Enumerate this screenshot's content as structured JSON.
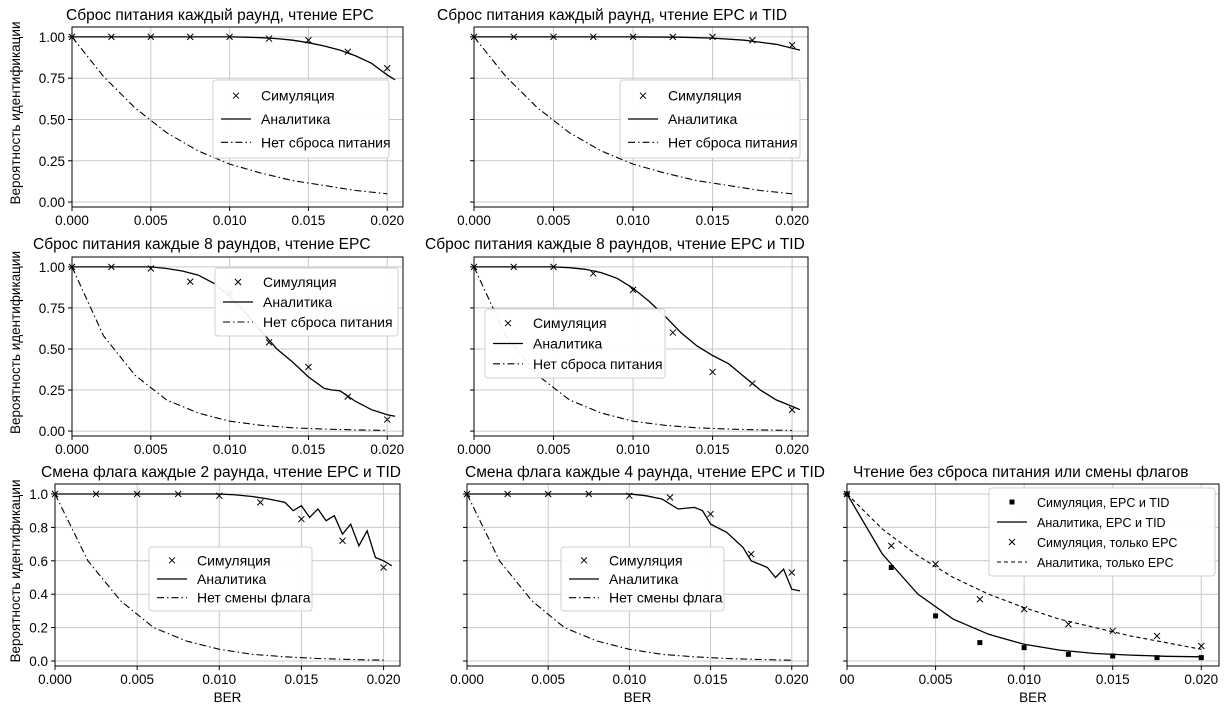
{
  "chart_data": [
    {
      "type": "line",
      "title": "Сброс питания каждый раунд, чтение EPC",
      "ylabel": "Вероятность идентификации",
      "xlabel": "",
      "xlim": [
        0,
        0.021
      ],
      "ylim": [
        -0.03,
        1.06
      ],
      "xticks": [
        "0.000",
        "0.005",
        "0.010",
        "0.015",
        "0.020"
      ],
      "yticks": [
        "0.00",
        "0.25",
        "0.50",
        "0.75",
        "1.00"
      ],
      "grid": true,
      "legend_position": "center-right",
      "series": [
        {
          "name": "Симуляция",
          "style": "marker-x",
          "x": [
            0,
            0.0025,
            0.005,
            0.0075,
            0.01,
            0.0125,
            0.015,
            0.0175,
            0.02
          ],
          "y": [
            1.0,
            1.0,
            1.0,
            1.0,
            1.0,
            0.99,
            0.98,
            0.91,
            0.81
          ]
        },
        {
          "name": "Аналитика",
          "style": "solid",
          "x": [
            0,
            0.005,
            0.01,
            0.011,
            0.012,
            0.013,
            0.014,
            0.015,
            0.016,
            0.017,
            0.018,
            0.019,
            0.02,
            0.0205
          ],
          "y": [
            1.0,
            1.0,
            1.0,
            0.998,
            0.995,
            0.99,
            0.98,
            0.965,
            0.945,
            0.92,
            0.885,
            0.84,
            0.77,
            0.74
          ]
        },
        {
          "name": "Нет сброса питания",
          "style": "dashdot",
          "x": [
            0,
            0.002,
            0.004,
            0.006,
            0.008,
            0.01,
            0.012,
            0.014,
            0.016,
            0.018,
            0.02
          ],
          "y": [
            1.0,
            0.76,
            0.57,
            0.42,
            0.31,
            0.23,
            0.175,
            0.13,
            0.1,
            0.07,
            0.05
          ]
        }
      ]
    },
    {
      "type": "line",
      "title": "Сброс питания каждый раунд, чтение EPC и TID",
      "ylabel": "",
      "xlabel": "",
      "xlim": [
        0,
        0.021
      ],
      "ylim": [
        -0.03,
        1.06
      ],
      "xticks": [
        "0.000",
        "0.005",
        "0.010",
        "0.015",
        "0.020"
      ],
      "yticks": [],
      "grid": true,
      "legend_position": "center-right",
      "series": [
        {
          "name": "Симуляция",
          "style": "marker-x",
          "x": [
            0,
            0.0025,
            0.005,
            0.0075,
            0.01,
            0.0125,
            0.015,
            0.0175,
            0.02
          ],
          "y": [
            1.0,
            1.0,
            1.0,
            1.0,
            1.0,
            1.0,
            1.0,
            0.98,
            0.95
          ]
        },
        {
          "name": "Аналитика",
          "style": "solid",
          "x": [
            0,
            0.005,
            0.01,
            0.013,
            0.015,
            0.017,
            0.019,
            0.0205
          ],
          "y": [
            1.0,
            1.0,
            1.0,
            0.998,
            0.993,
            0.98,
            0.955,
            0.92
          ]
        },
        {
          "name": "Нет сброса питания",
          "style": "dashdot",
          "x": [
            0,
            0.002,
            0.004,
            0.006,
            0.008,
            0.01,
            0.012,
            0.014,
            0.016,
            0.018,
            0.02
          ],
          "y": [
            1.0,
            0.76,
            0.57,
            0.42,
            0.31,
            0.23,
            0.175,
            0.13,
            0.1,
            0.07,
            0.05
          ]
        }
      ]
    },
    {
      "type": "line",
      "title": "Сброс питания каждые 8 раундов, чтение EPC",
      "ylabel": "Вероятность идентификации",
      "xlabel": "",
      "xlim": [
        0,
        0.021
      ],
      "ylim": [
        -0.03,
        1.06
      ],
      "xticks": [
        "0.000",
        "0.005",
        "0.010",
        "0.015",
        "0.020"
      ],
      "yticks": [
        "0.00",
        "0.25",
        "0.50",
        "0.75",
        "1.00"
      ],
      "grid": true,
      "legend_position": "upper-right",
      "series": [
        {
          "name": "Симуляция",
          "style": "marker-x",
          "x": [
            0,
            0.0025,
            0.005,
            0.0075,
            0.01,
            0.0125,
            0.015,
            0.0175,
            0.02
          ],
          "y": [
            1.0,
            1.0,
            0.99,
            0.91,
            0.84,
            0.54,
            0.39,
            0.21,
            0.07
          ]
        },
        {
          "name": "Аналитика",
          "style": "solid",
          "x": [
            0,
            0.005,
            0.006,
            0.007,
            0.008,
            0.009,
            0.01,
            0.011,
            0.012,
            0.013,
            0.014,
            0.015,
            0.016,
            0.0165,
            0.017,
            0.018,
            0.019,
            0.02,
            0.0205
          ],
          "y": [
            1.0,
            1.0,
            0.99,
            0.975,
            0.95,
            0.9,
            0.82,
            0.72,
            0.61,
            0.5,
            0.42,
            0.33,
            0.26,
            0.25,
            0.245,
            0.18,
            0.13,
            0.1,
            0.09
          ]
        },
        {
          "name": "Нет сброса питания",
          "style": "dashdot",
          "x": [
            0,
            0.002,
            0.004,
            0.006,
            0.008,
            0.01,
            0.012,
            0.014,
            0.016,
            0.018,
            0.02
          ],
          "y": [
            1.0,
            0.58,
            0.34,
            0.19,
            0.11,
            0.06,
            0.035,
            0.02,
            0.012,
            0.007,
            0.004
          ]
        }
      ]
    },
    {
      "type": "line",
      "title": "Сброс питания каждые 8 раундов, чтение EPC и TID",
      "ylabel": "",
      "xlabel": "",
      "xlim": [
        0,
        0.021
      ],
      "ylim": [
        -0.03,
        1.06
      ],
      "xticks": [
        "0.000",
        "0.005",
        "0.010",
        "0.015",
        "0.020"
      ],
      "yticks": [],
      "grid": true,
      "legend_position": "center-left",
      "series": [
        {
          "name": "Симуляция",
          "style": "marker-x",
          "x": [
            0,
            0.0025,
            0.005,
            0.0075,
            0.01,
            0.0125,
            0.015,
            0.0175,
            0.02
          ],
          "y": [
            1.0,
            1.0,
            1.0,
            0.96,
            0.86,
            0.6,
            0.36,
            0.29,
            0.13
          ]
        },
        {
          "name": "Аналитика",
          "style": "solid",
          "x": [
            0,
            0.005,
            0.006,
            0.007,
            0.008,
            0.009,
            0.01,
            0.011,
            0.012,
            0.013,
            0.014,
            0.015,
            0.016,
            0.017,
            0.018,
            0.019,
            0.02,
            0.0205
          ],
          "y": [
            1.0,
            1.0,
            0.995,
            0.985,
            0.965,
            0.93,
            0.87,
            0.79,
            0.7,
            0.6,
            0.52,
            0.46,
            0.41,
            0.33,
            0.25,
            0.19,
            0.15,
            0.13
          ]
        },
        {
          "name": "Нет сброса питания",
          "style": "dashdot",
          "x": [
            0,
            0.002,
            0.004,
            0.006,
            0.008,
            0.01,
            0.012,
            0.014,
            0.016,
            0.018,
            0.02
          ],
          "y": [
            1.0,
            0.58,
            0.34,
            0.19,
            0.11,
            0.06,
            0.035,
            0.02,
            0.012,
            0.007,
            0.004
          ]
        }
      ]
    },
    {
      "type": "line",
      "title": "Смена флага каждые 2 раунда, чтение EPC и TID",
      "ylabel": "Вероятность идентификации",
      "xlabel": "BER",
      "xlim": [
        0,
        0.021
      ],
      "ylim": [
        -0.03,
        1.06
      ],
      "xticks": [
        "0.000",
        "0.005",
        "0.010",
        "0.015",
        "0.020"
      ],
      "yticks": [
        "0.0",
        "0.2",
        "0.4",
        "0.6",
        "0.8",
        "1.0"
      ],
      "grid": true,
      "legend_position": "center",
      "series": [
        {
          "name": "Симуляция",
          "style": "marker-x",
          "x": [
            0,
            0.0025,
            0.005,
            0.0075,
            0.01,
            0.0125,
            0.015,
            0.0175,
            0.02
          ],
          "y": [
            1.0,
            1.0,
            1.0,
            1.0,
            0.99,
            0.95,
            0.85,
            0.72,
            0.56
          ]
        },
        {
          "name": "Аналитика",
          "style": "solid",
          "x": [
            0,
            0.005,
            0.01,
            0.011,
            0.012,
            0.013,
            0.014,
            0.0145,
            0.015,
            0.0155,
            0.016,
            0.0165,
            0.017,
            0.0175,
            0.018,
            0.0185,
            0.019,
            0.0195,
            0.02,
            0.0205
          ],
          "y": [
            1.0,
            1.0,
            1.0,
            0.995,
            0.985,
            0.97,
            0.95,
            0.9,
            0.93,
            0.86,
            0.91,
            0.84,
            0.87,
            0.76,
            0.82,
            0.69,
            0.78,
            0.62,
            0.6,
            0.57
          ]
        },
        {
          "name": "Нет смены флага",
          "style": "dashdot",
          "x": [
            0,
            0.002,
            0.004,
            0.006,
            0.008,
            0.01,
            0.012,
            0.014,
            0.016,
            0.018,
            0.02
          ],
          "y": [
            1.0,
            0.6,
            0.36,
            0.2,
            0.12,
            0.07,
            0.04,
            0.025,
            0.015,
            0.009,
            0.005
          ]
        }
      ]
    },
    {
      "type": "line",
      "title": "Смена флага каждые 4 раунда, чтение EPC и TID",
      "ylabel": "",
      "xlabel": "BER",
      "xlim": [
        0,
        0.021
      ],
      "ylim": [
        -0.03,
        1.06
      ],
      "xticks": [
        "0.000",
        "0.005",
        "0.010",
        "0.015",
        "0.020"
      ],
      "yticks": [],
      "grid": true,
      "legend_position": "center",
      "series": [
        {
          "name": "Симуляция",
          "style": "marker-x",
          "x": [
            0,
            0.0025,
            0.005,
            0.0075,
            0.01,
            0.0125,
            0.015,
            0.0175,
            0.02
          ],
          "y": [
            1.0,
            1.0,
            1.0,
            1.0,
            0.99,
            0.98,
            0.88,
            0.64,
            0.53
          ]
        },
        {
          "name": "Аналитика",
          "style": "solid",
          "x": [
            0,
            0.005,
            0.01,
            0.011,
            0.012,
            0.013,
            0.014,
            0.0145,
            0.015,
            0.016,
            0.017,
            0.0175,
            0.018,
            0.0185,
            0.019,
            0.0195,
            0.02,
            0.0205
          ],
          "y": [
            1.0,
            1.0,
            1.0,
            0.99,
            0.97,
            0.91,
            0.92,
            0.9,
            0.82,
            0.77,
            0.68,
            0.6,
            0.58,
            0.56,
            0.5,
            0.55,
            0.43,
            0.42
          ]
        },
        {
          "name": "Нет смены флага",
          "style": "dashdot",
          "x": [
            0,
            0.002,
            0.004,
            0.006,
            0.008,
            0.01,
            0.012,
            0.014,
            0.016,
            0.018,
            0.02
          ],
          "y": [
            1.0,
            0.6,
            0.36,
            0.2,
            0.12,
            0.07,
            0.04,
            0.025,
            0.015,
            0.009,
            0.005
          ]
        }
      ]
    },
    {
      "type": "line",
      "title": "Чтение без сброса питания или смены флагов",
      "ylabel": "",
      "xlabel": "BER",
      "xlim": [
        0,
        0.021
      ],
      "ylim": [
        -0.03,
        1.06
      ],
      "xticks": [
        "00",
        "0.005",
        "0.010",
        "0.015",
        "0.020"
      ],
      "yticks": [],
      "grid": true,
      "legend_position": "upper-right",
      "series": [
        {
          "name": "Симуляция, EPC и TID",
          "style": "marker-square",
          "x": [
            0,
            0.0025,
            0.005,
            0.0075,
            0.01,
            0.0125,
            0.015,
            0.0175,
            0.02
          ],
          "y": [
            1.0,
            0.56,
            0.27,
            0.11,
            0.08,
            0.04,
            0.03,
            0.02,
            0.02
          ]
        },
        {
          "name": "Аналитика, EPC и TID",
          "style": "solid",
          "x": [
            0,
            0.002,
            0.004,
            0.006,
            0.008,
            0.01,
            0.012,
            0.014,
            0.016,
            0.018,
            0.02
          ],
          "y": [
            1.0,
            0.64,
            0.4,
            0.25,
            0.16,
            0.1,
            0.065,
            0.045,
            0.035,
            0.028,
            0.025
          ]
        },
        {
          "name": "Симуляция, только EPC",
          "style": "marker-x",
          "x": [
            0,
            0.0025,
            0.005,
            0.0075,
            0.01,
            0.0125,
            0.015,
            0.0175,
            0.02
          ],
          "y": [
            1.0,
            0.69,
            0.58,
            0.37,
            0.31,
            0.22,
            0.18,
            0.15,
            0.09
          ]
        },
        {
          "name": "Аналитика, только EPC",
          "style": "dashed",
          "x": [
            0,
            0.002,
            0.004,
            0.006,
            0.008,
            0.01,
            0.012,
            0.014,
            0.016,
            0.018,
            0.02
          ],
          "y": [
            1.0,
            0.79,
            0.63,
            0.5,
            0.4,
            0.32,
            0.25,
            0.2,
            0.15,
            0.11,
            0.07
          ]
        }
      ]
    }
  ]
}
